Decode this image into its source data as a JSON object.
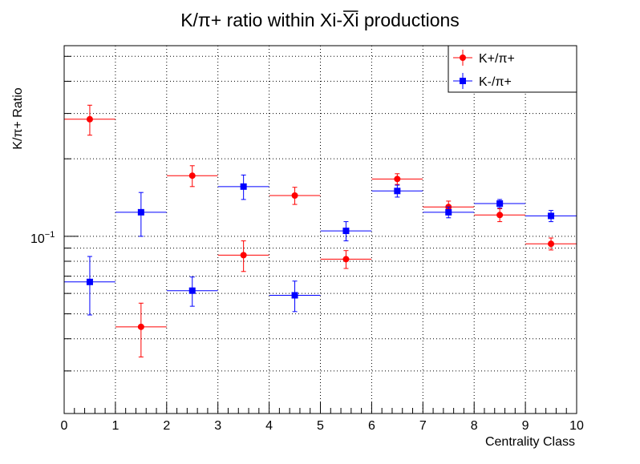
{
  "chart_data": {
    "type": "scatter",
    "title_main": "K/π+ ratio within Xi-",
    "title_overline": "Xi",
    "title_tail": " productions",
    "xlabel": "Centrality Class",
    "ylabel": "K/π+ Ratio",
    "xlim": [
      0,
      10
    ],
    "ylim": [
      0.0205,
      0.55
    ],
    "y_scale": "log",
    "grid": true,
    "legend_position": "top-right",
    "x_ticks": [
      "0",
      "1",
      "2",
      "3",
      "4",
      "5",
      "6",
      "7",
      "8",
      "9",
      "10"
    ],
    "y_tick_label": "10",
    "y_tick_exponent": "−1",
    "x": [
      0.5,
      1.5,
      2.5,
      3.5,
      4.5,
      5.5,
      6.5,
      7.5,
      8.5,
      9.5
    ],
    "x_err": 0.5,
    "series": [
      {
        "name": "K+/π+",
        "color": "#ff0000",
        "marker": "circle",
        "values": [
          0.285,
          0.0445,
          0.172,
          0.0845,
          0.144,
          0.0815,
          0.167,
          0.13,
          0.121,
          0.0935
        ],
        "errors": [
          0.038,
          0.0105,
          0.016,
          0.0115,
          0.011,
          0.0065,
          0.008,
          0.007,
          0.007,
          0.005
        ]
      },
      {
        "name": "K-/π+",
        "color": "#0000ff",
        "marker": "square",
        "values": [
          0.0665,
          0.124,
          0.0615,
          0.156,
          0.059,
          0.105,
          0.15,
          0.124,
          0.134,
          0.12
        ],
        "errors": [
          0.017,
          0.024,
          0.008,
          0.017,
          0.008,
          0.009,
          0.008,
          0.006,
          0.005,
          0.006
        ]
      }
    ]
  }
}
